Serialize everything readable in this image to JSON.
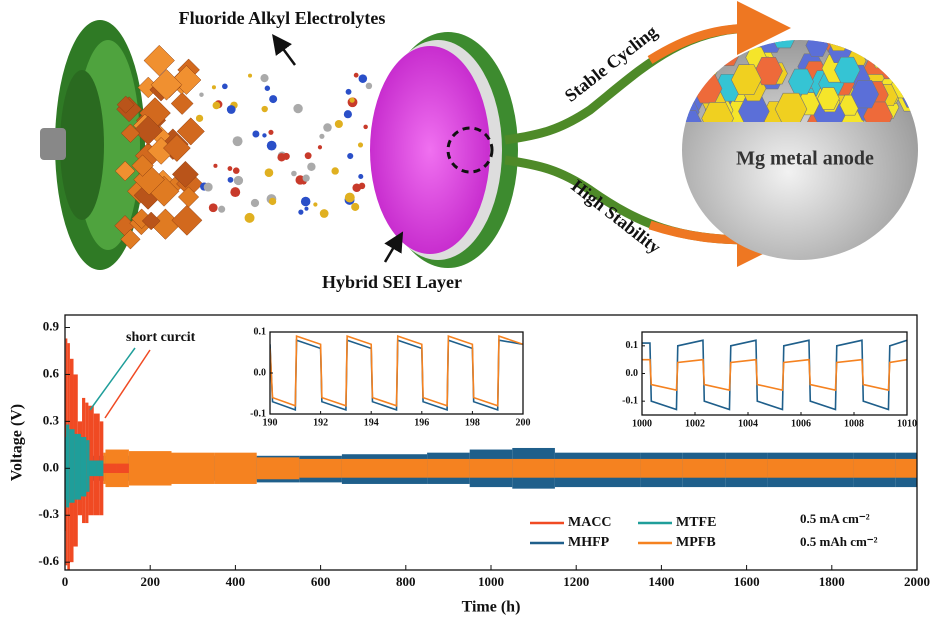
{
  "illustration": {
    "labels": [
      "Fluoride Alkyl Electrolytes",
      "Hybrid SEI Layer",
      "Stable Cycling",
      "High Stability",
      "Mg metal anode"
    ]
  },
  "chart_data": [
    {
      "type": "area",
      "x_label": "Time (h)",
      "y_label": "Voltage (V)",
      "xlim": [
        0,
        2000
      ],
      "xticks": [
        0,
        200,
        400,
        600,
        800,
        1000,
        1200,
        1400,
        1600,
        1800,
        2000
      ],
      "ylim": [
        -0.65,
        0.98
      ],
      "yticks": [
        -0.6,
        -0.3,
        {
          "value": 0,
          "label": "0.0"
        },
        0.3,
        0.6,
        0.9
      ],
      "annotations": [
        "short curcit",
        "0.5 mA cm⁻²",
        "0.5 mAh cm⁻²"
      ],
      "series": [
        {
          "name": "MACC",
          "color": "#f04a23",
          "x": [
            0,
            3,
            8,
            15,
            25,
            35,
            45,
            50,
            60,
            75,
            88,
            92,
            150
          ],
          "values": [
            0.6,
            0.83,
            0.8,
            0.7,
            0.6,
            0.3,
            0.45,
            0.42,
            0.4,
            0.35,
            0.3,
            0.03,
            0.03
          ],
          "lower": [
            -0.4,
            -0.62,
            -0.65,
            -0.6,
            -0.5,
            -0.3,
            -0.35,
            -0.35,
            -0.3,
            -0.3,
            -0.3,
            -0.03,
            -0.03
          ]
        },
        {
          "name": "MTFE",
          "color": "#1f9e9a",
          "x": [
            0,
            5,
            15,
            30,
            45,
            55,
            60,
            90
          ],
          "values": [
            0.2,
            0.28,
            0.25,
            0.22,
            0.2,
            0.18,
            0.05,
            0.05
          ],
          "lower": [
            -0.2,
            -0.25,
            -0.22,
            -0.2,
            -0.18,
            -0.15,
            -0.05,
            -0.05
          ]
        },
        {
          "name": "MHFP",
          "color": "#1f5f8b",
          "x": [
            0,
            100,
            200,
            300,
            400,
            500,
            600,
            700,
            800,
            900,
            1000,
            1100,
            1200,
            1300,
            1400,
            1500,
            1600,
            1700,
            1800,
            1900,
            2000
          ],
          "values": [
            0.06,
            0.08,
            0.08,
            0.08,
            0.08,
            0.08,
            0.08,
            0.09,
            0.09,
            0.1,
            0.12,
            0.13,
            0.1,
            0.1,
            0.1,
            0.1,
            0.1,
            0.1,
            0.1,
            0.1,
            0.1
          ],
          "lower": [
            -0.06,
            -0.08,
            -0.08,
            -0.08,
            -0.08,
            -0.09,
            -0.09,
            -0.1,
            -0.1,
            -0.1,
            -0.12,
            -0.13,
            -0.12,
            -0.12,
            -0.12,
            -0.12,
            -0.12,
            -0.12,
            -0.12,
            -0.12,
            -0.12
          ]
        },
        {
          "name": "MPFB",
          "color": "#f58220",
          "x": [
            90,
            100,
            200,
            300,
            400,
            500,
            600,
            700,
            800,
            900,
            1000,
            1100,
            1200,
            1300,
            1400,
            1500,
            1600,
            1700,
            1800,
            1900,
            2000
          ],
          "values": [
            0.1,
            0.12,
            0.11,
            0.1,
            0.1,
            0.07,
            0.06,
            0.06,
            0.06,
            0.06,
            0.06,
            0.06,
            0.06,
            0.06,
            0.06,
            0.06,
            0.06,
            0.06,
            0.06,
            0.06,
            0.06
          ],
          "lower": [
            -0.1,
            -0.12,
            -0.11,
            -0.1,
            -0.1,
            -0.07,
            -0.06,
            -0.06,
            -0.06,
            -0.06,
            -0.06,
            -0.06,
            -0.06,
            -0.06,
            -0.06,
            -0.06,
            -0.06,
            -0.06,
            -0.06,
            -0.06,
            -0.06
          ]
        }
      ]
    },
    {
      "type": "line",
      "xlim": [
        190,
        200
      ],
      "xticks": [
        190,
        192,
        194,
        196,
        198,
        200
      ],
      "ylim": [
        -0.1,
        0.1
      ],
      "yticks": [
        -0.1,
        {
          "value": 0,
          "label": "0.0"
        },
        0.1
      ],
      "series": [
        {
          "color": "#1f5f8b",
          "x": [
            190,
            190.1,
            191,
            191.05,
            192,
            192.05,
            193,
            193.05,
            194,
            194.05,
            195,
            195.05,
            196,
            196.05,
            197,
            197.05,
            198,
            198.05,
            199,
            199.05,
            200
          ],
          "values": [
            0.07,
            -0.07,
            -0.09,
            0.08,
            0.06,
            -0.07,
            -0.09,
            0.08,
            0.06,
            -0.07,
            -0.09,
            0.08,
            0.06,
            -0.07,
            -0.09,
            0.08,
            0.06,
            -0.07,
            -0.09,
            0.08,
            0.07
          ]
        },
        {
          "color": "#f58220",
          "x": [
            190,
            190.1,
            191,
            191.05,
            192,
            192.05,
            193,
            193.05,
            194,
            194.05,
            195,
            195.05,
            196,
            196.05,
            197,
            197.05,
            198,
            198.05,
            199,
            199.05,
            200
          ],
          "values": [
            0.06,
            -0.06,
            -0.08,
            0.09,
            0.07,
            -0.06,
            -0.08,
            0.09,
            0.07,
            -0.06,
            -0.08,
            0.09,
            0.07,
            -0.06,
            -0.08,
            0.09,
            0.07,
            -0.06,
            -0.08,
            0.09,
            0.07
          ]
        }
      ]
    },
    {
      "type": "line",
      "xlim": [
        1000,
        1010
      ],
      "xticks": [
        1000,
        1002,
        1004,
        1006,
        1008,
        1010
      ],
      "ylim": [
        -0.15,
        0.15
      ],
      "yticks": [
        -0.1,
        {
          "value": 0,
          "label": "0.0"
        },
        0.1
      ],
      "series": [
        {
          "color": "#1f5f8b",
          "x": [
            1000,
            1000.3,
            1000.35,
            1001.3,
            1001.35,
            1002.3,
            1002.35,
            1003.3,
            1003.35,
            1004.3,
            1004.35,
            1005.3,
            1005.35,
            1006.3,
            1006.35,
            1007.3,
            1007.35,
            1008.3,
            1008.35,
            1009.3,
            1009.35,
            1010
          ],
          "values": [
            0.11,
            0.11,
            -0.1,
            -0.13,
            0.1,
            0.12,
            -0.1,
            -0.13,
            0.1,
            0.12,
            -0.1,
            -0.13,
            0.1,
            0.12,
            -0.1,
            -0.13,
            0.1,
            0.12,
            -0.1,
            -0.13,
            0.1,
            0.12
          ]
        },
        {
          "color": "#f58220",
          "x": [
            1000,
            1000.3,
            1000.35,
            1001.3,
            1001.35,
            1002.3,
            1002.35,
            1003.3,
            1003.35,
            1004.3,
            1004.35,
            1005.3,
            1005.35,
            1006.3,
            1006.35,
            1007.3,
            1007.35,
            1008.3,
            1008.35,
            1009.3,
            1009.35,
            1010
          ],
          "values": [
            0.05,
            0.05,
            -0.04,
            -0.06,
            0.04,
            0.05,
            -0.04,
            -0.06,
            0.04,
            0.05,
            -0.04,
            -0.06,
            0.04,
            0.05,
            -0.04,
            -0.06,
            0.04,
            0.05,
            -0.04,
            -0.06,
            0.04,
            0.05
          ]
        }
      ]
    }
  ]
}
